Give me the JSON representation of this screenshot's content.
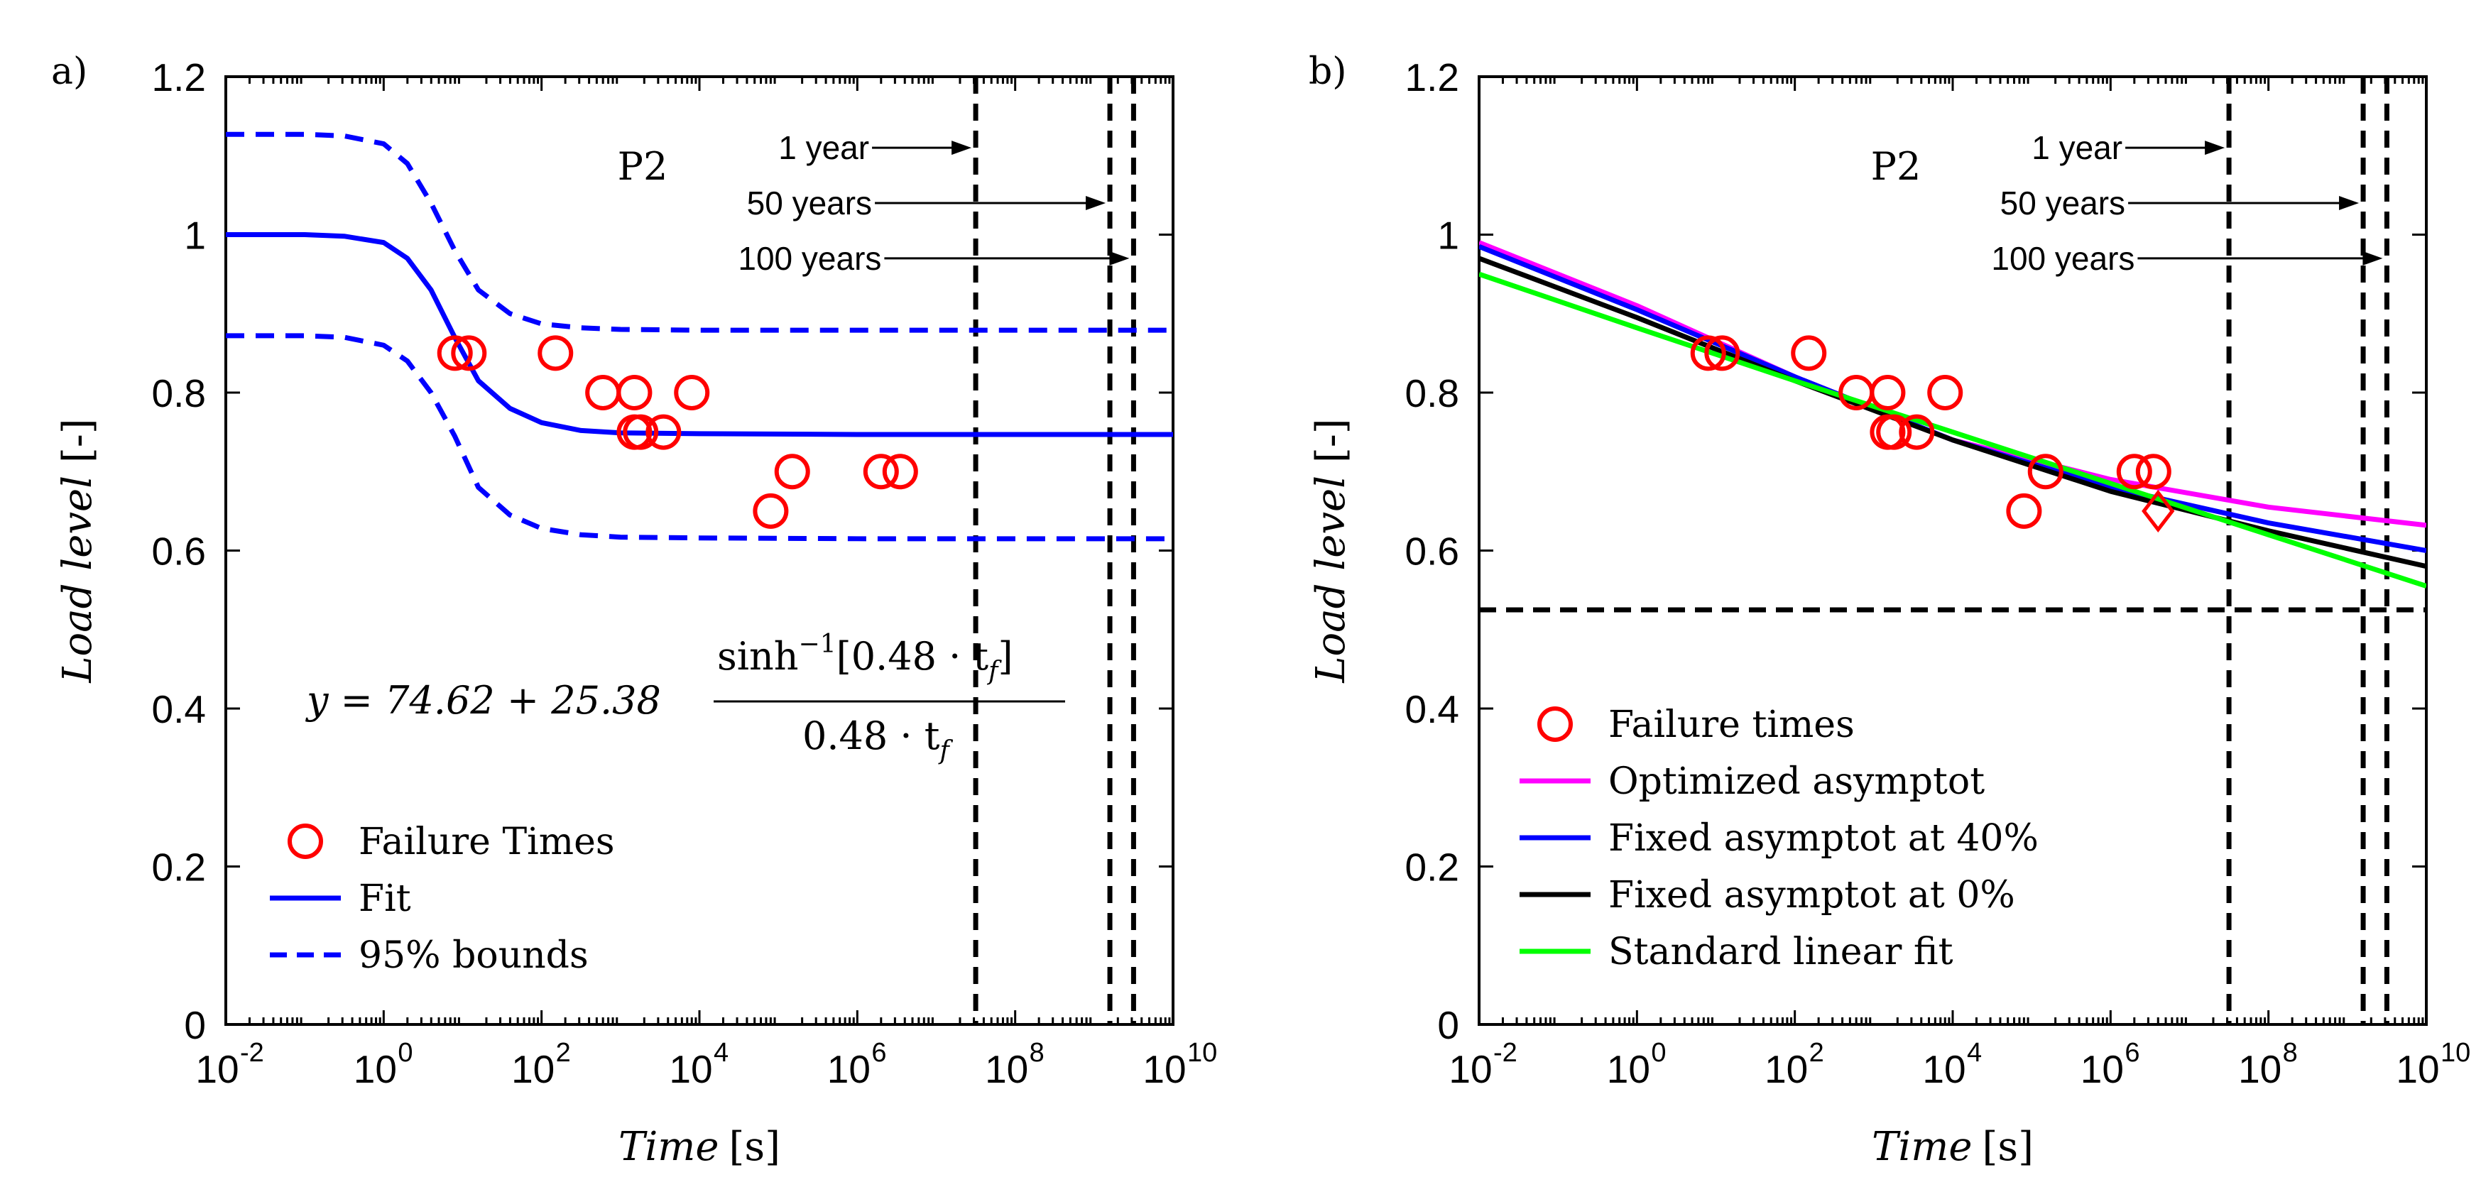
{
  "chart_data": [
    {
      "panel_label": "a)",
      "type": "scatter",
      "sample_label": "P2",
      "xscale": "log",
      "xlim": [
        0.01,
        10000000000
      ],
      "ylim": [
        0,
        1.2
      ],
      "x_ticks": [
        {
          "base": "10",
          "exp": "-2"
        },
        {
          "base": "10",
          "exp": "0"
        },
        {
          "base": "10",
          "exp": "2"
        },
        {
          "base": "10",
          "exp": "4"
        },
        {
          "base": "10",
          "exp": "6"
        },
        {
          "base": "10",
          "exp": "8"
        },
        {
          "base": "10",
          "exp": "10"
        }
      ],
      "y_ticks": [
        "0",
        "0.2",
        "0.4",
        "0.6",
        "0.8",
        "1",
        "1.2"
      ],
      "xlabel": {
        "italic": "Time",
        "unit": "[s]"
      },
      "ylabel": {
        "italic": "Load level",
        "unit": "[-]"
      },
      "failure_times": {
        "name": "Failure Times",
        "color": "#ff0000",
        "points": [
          [
            8,
            0.85
          ],
          [
            12,
            0.85
          ],
          [
            150,
            0.85
          ],
          [
            600,
            0.8
          ],
          [
            1500,
            0.8
          ],
          [
            1500,
            0.75
          ],
          [
            1800,
            0.75
          ],
          [
            3500,
            0.75
          ],
          [
            8000,
            0.8
          ],
          [
            80000,
            0.65
          ],
          [
            150000,
            0.7
          ],
          [
            2000000,
            0.7
          ],
          [
            3500000,
            0.7
          ]
        ]
      },
      "series": [
        {
          "name": "Fit",
          "style": "solid",
          "color": "#0000ff",
          "x_log10": [
            -2,
            -1,
            -0.5,
            0,
            0.3,
            0.6,
            0.9,
            1.2,
            1.6,
            2,
            2.5,
            3,
            4,
            6,
            8,
            10
          ],
          "y": [
            1.0,
            1.0,
            0.998,
            0.99,
            0.97,
            0.93,
            0.87,
            0.815,
            0.78,
            0.762,
            0.752,
            0.749,
            0.748,
            0.747,
            0.747,
            0.747
          ]
        },
        {
          "name": "95% bounds",
          "style": "dashed",
          "color": "#0000ff",
          "x_log10": [
            -2,
            -1,
            -0.5,
            0,
            0.3,
            0.6,
            0.9,
            1.2,
            1.6,
            2,
            2.5,
            3,
            4,
            6,
            8,
            10
          ],
          "y": [
            1.127,
            1.127,
            1.125,
            1.115,
            1.09,
            1.04,
            0.98,
            0.93,
            0.9,
            0.887,
            0.882,
            0.88,
            0.879,
            0.879,
            0.879,
            0.879
          ]
        },
        {
          "name": "95% bounds (lower)",
          "style": "dashed",
          "color": "#0000ff",
          "x_log10": [
            -2,
            -1,
            -0.5,
            0,
            0.3,
            0.6,
            0.9,
            1.2,
            1.6,
            2,
            2.5,
            3,
            4,
            6,
            8,
            10
          ],
          "y": [
            0.872,
            0.872,
            0.87,
            0.86,
            0.84,
            0.8,
            0.745,
            0.68,
            0.645,
            0.628,
            0.62,
            0.617,
            0.616,
            0.615,
            0.615,
            0.615
          ]
        }
      ],
      "vertical_lines": [
        {
          "label": "1 year",
          "x_log10": 7.5,
          "y_range": [
            0,
            1.2
          ]
        },
        {
          "label": "50 years",
          "x_log10": 9.2,
          "y_range": [
            0,
            1.2
          ]
        },
        {
          "label": "100 years",
          "x_log10": 9.5,
          "y_range": [
            0,
            1.2
          ]
        }
      ],
      "annotations": [
        {
          "text": "1 year",
          "y": 1.11,
          "x_log10_to": 7.5
        },
        {
          "text": "50 years",
          "y": 1.04,
          "x_log10_to": 9.2
        },
        {
          "text": "100 years",
          "y": 0.97,
          "x_log10_to": 9.5
        }
      ],
      "equation": {
        "lhs": "y = 74.62 + 25.38",
        "numerator": "sinh",
        "numerator_sup": "−1",
        "numerator_rest": "[0.48 · t",
        "numerator_sub": "f",
        "numerator_close": "]",
        "denominator": "0.48 · t",
        "denominator_sub": "f"
      },
      "legend": [
        {
          "label": "Failure Times",
          "marker": "circle",
          "color": "#ff0000"
        },
        {
          "label": "Fit",
          "line": "solid",
          "color": "#0000ff"
        },
        {
          "label": "95% bounds",
          "line": "dashed",
          "color": "#0000ff"
        }
      ]
    },
    {
      "panel_label": "b)",
      "type": "scatter",
      "sample_label": "P2",
      "xscale": "log",
      "xlim": [
        0.01,
        10000000000
      ],
      "ylim": [
        0,
        1.2
      ],
      "x_ticks": [
        {
          "base": "10",
          "exp": "-2"
        },
        {
          "base": "10",
          "exp": "0"
        },
        {
          "base": "10",
          "exp": "2"
        },
        {
          "base": "10",
          "exp": "4"
        },
        {
          "base": "10",
          "exp": "6"
        },
        {
          "base": "10",
          "exp": "8"
        },
        {
          "base": "10",
          "exp": "10"
        }
      ],
      "y_ticks": [
        "0",
        "0.2",
        "0.4",
        "0.6",
        "0.8",
        "1",
        "1.2"
      ],
      "xlabel": {
        "italic": "Time",
        "unit": "[s]"
      },
      "ylabel": {
        "italic": "Load level",
        "unit": "[-]"
      },
      "failure_times": {
        "name": "Failure times",
        "color": "#ff0000",
        "points": [
          [
            8,
            0.85
          ],
          [
            12,
            0.85
          ],
          [
            150,
            0.85
          ],
          [
            600,
            0.8
          ],
          [
            1500,
            0.8
          ],
          [
            1500,
            0.75
          ],
          [
            1800,
            0.75
          ],
          [
            3500,
            0.75
          ],
          [
            8000,
            0.8
          ],
          [
            80000,
            0.65
          ],
          [
            150000,
            0.7
          ],
          [
            2000000,
            0.7
          ],
          [
            3500000,
            0.7
          ]
        ]
      },
      "extra_marker": {
        "shape": "diamond",
        "x": 4000000,
        "y": 0.65,
        "color": "#ff0000"
      },
      "series": [
        {
          "name": "Optimized asymptot",
          "style": "solid",
          "color": "#ff00ff",
          "x_log10": [
            -2,
            0,
            2,
            4,
            6,
            8,
            10
          ],
          "y": [
            0.99,
            0.91,
            0.82,
            0.74,
            0.69,
            0.655,
            0.632
          ]
        },
        {
          "name": "Fixed asymptot at 40%",
          "style": "solid",
          "color": "#0000ff",
          "x_log10": [
            -2,
            0,
            2,
            4,
            6,
            8,
            10
          ],
          "y": [
            0.985,
            0.905,
            0.82,
            0.74,
            0.68,
            0.635,
            0.6
          ]
        },
        {
          "name": "Fixed asymptot at 0%",
          "style": "solid",
          "color": "#000000",
          "x_log10": [
            -2,
            0,
            2,
            4,
            6,
            8,
            10
          ],
          "y": [
            0.97,
            0.895,
            0.815,
            0.74,
            0.675,
            0.625,
            0.58
          ]
        },
        {
          "name": "Standard linear fit",
          "style": "solid",
          "color": "#00ff00",
          "x_log10": [
            -2,
            0,
            2,
            4,
            6,
            8,
            10
          ],
          "y": [
            0.95,
            0.882,
            0.815,
            0.75,
            0.685,
            0.62,
            0.555
          ]
        }
      ],
      "horizontal_line": {
        "y": 0.525,
        "style": "dashed",
        "color": "#000000"
      },
      "vertical_lines": [
        {
          "label": "1 year",
          "x_log10": 7.5,
          "y_range": [
            0,
            1.2
          ]
        },
        {
          "label": "50 years",
          "x_log10": 9.2,
          "y_range": [
            0,
            1.2
          ]
        },
        {
          "label": "100 years",
          "x_log10": 9.5,
          "y_range": [
            0,
            1.2
          ]
        }
      ],
      "annotations": [
        {
          "text": "1 year",
          "y": 1.11,
          "x_log10_to": 7.5
        },
        {
          "text": "50 years",
          "y": 1.04,
          "x_log10_to": 9.2
        },
        {
          "text": "100 years",
          "y": 0.97,
          "x_log10_to": 9.5
        }
      ],
      "legend": [
        {
          "label": "Failure times",
          "marker": "circle",
          "color": "#ff0000"
        },
        {
          "label": "Optimized asymptot",
          "line": "solid",
          "color": "#ff00ff"
        },
        {
          "label": "Fixed asymptot at 40%",
          "line": "solid",
          "color": "#0000ff"
        },
        {
          "label": "Fixed asymptot at 0%",
          "line": "solid",
          "color": "#000000"
        },
        {
          "label": "Standard linear fit",
          "line": "solid",
          "color": "#00ff00"
        }
      ]
    }
  ]
}
